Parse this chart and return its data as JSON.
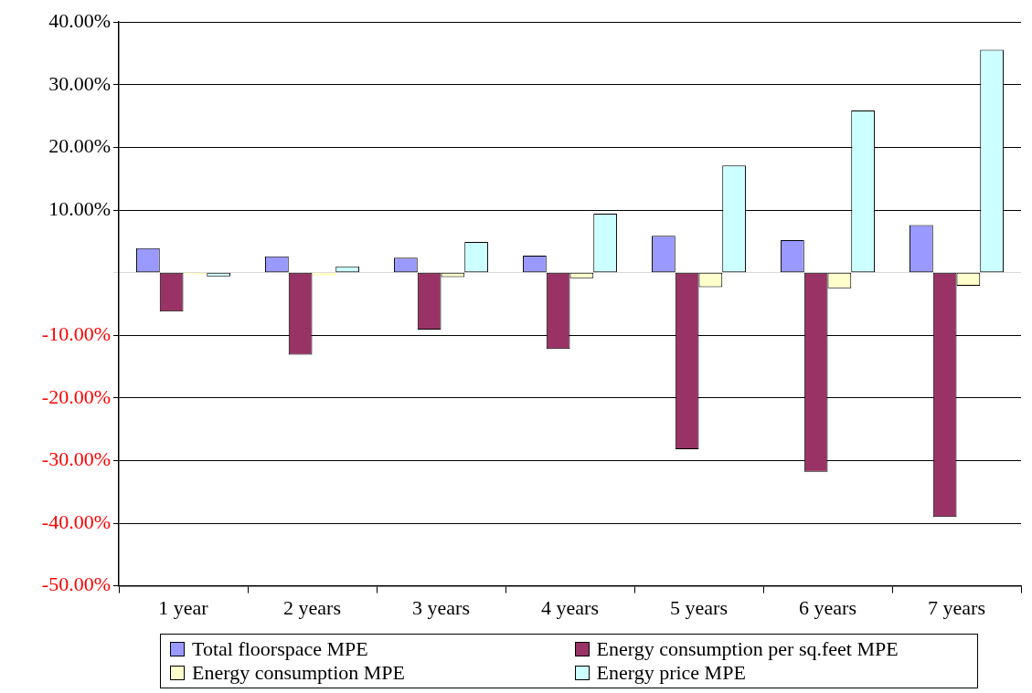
{
  "chart_data": {
    "type": "bar",
    "categories": [
      "1 year",
      "2 years",
      "3 years",
      "4 years",
      "5 years",
      "6 years",
      "7 years"
    ],
    "series": [
      {
        "name": "Total floorspace MPE",
        "color": "#9999ff",
        "values": [
          3.9,
          2.6,
          2.4,
          2.7,
          5.9,
          5.2,
          7.6
        ]
      },
      {
        "name": "Energy consumption per sq.feet MPE",
        "color": "#993366",
        "values": [
          -6.2,
          -13.1,
          -9.1,
          -12.2,
          -28.2,
          -31.8,
          -39.0
        ]
      },
      {
        "name": "Energy consumption MPE",
        "color": "#ffffcc",
        "values": [
          -0.3,
          -0.5,
          -0.7,
          -0.9,
          -2.3,
          -2.5,
          -2.1
        ]
      },
      {
        "name": "Energy price MPE",
        "color": "#ccffff",
        "values": [
          -0.6,
          1.0,
          4.9,
          9.4,
          17.1,
          25.9,
          35.6
        ]
      }
    ],
    "ylim": [
      -50,
      40
    ],
    "yticks": [
      {
        "value": 40,
        "label": "40.00%"
      },
      {
        "value": 30,
        "label": "30.00%"
      },
      {
        "value": 20,
        "label": "20.00%"
      },
      {
        "value": 10,
        "label": "10.00%"
      },
      {
        "value": 0,
        "label": null
      },
      {
        "value": -10,
        "label": "-10.00%"
      },
      {
        "value": -20,
        "label": "-20.00%"
      },
      {
        "value": -30,
        "label": "-30.00%"
      },
      {
        "value": -40,
        "label": "-40.00%"
      },
      {
        "value": -50,
        "label": "-50.00%"
      }
    ],
    "grid": "y",
    "legend": "bottom"
  }
}
